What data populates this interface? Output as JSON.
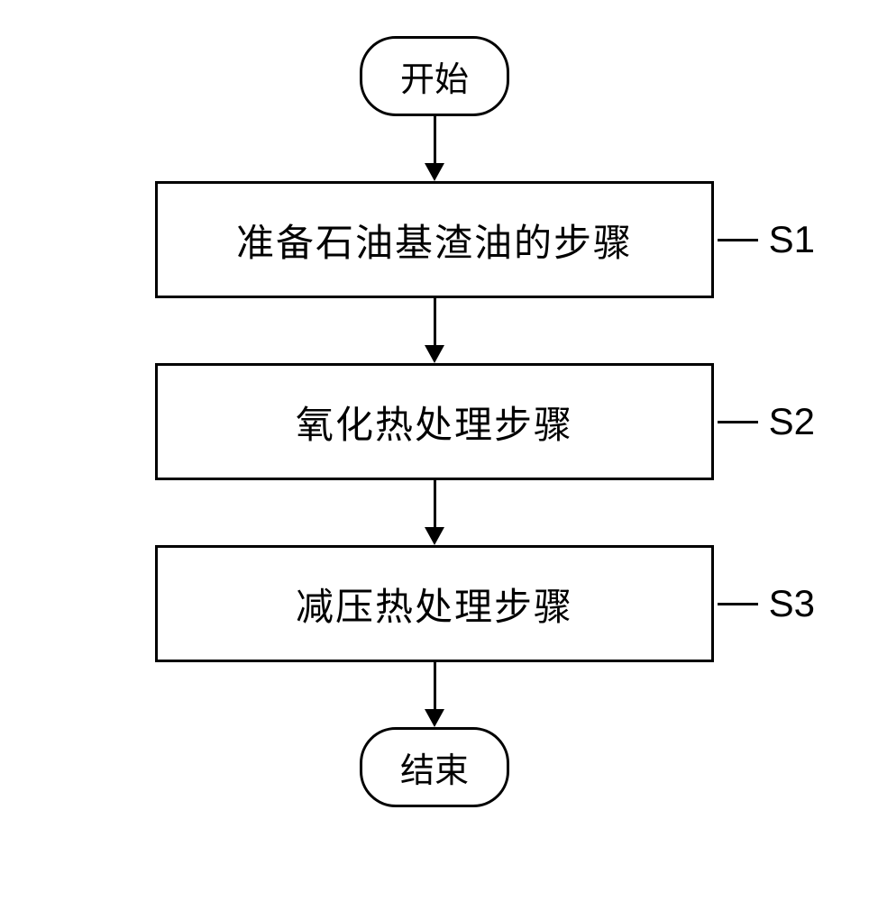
{
  "flowchart": {
    "type": "flowchart",
    "background_color": "#ffffff",
    "border_color": "#000000",
    "border_width": 3,
    "text_color": "#000000",
    "font_family": "SimSun",
    "terminal_fontsize": 38,
    "process_fontsize": 42,
    "label_fontsize": 42,
    "terminal_border_radius": 40,
    "process_width": 620,
    "process_height": 130,
    "arrow_length": 72,
    "arrow_head_width": 22,
    "arrow_head_height": 20,
    "connector_length": 45,
    "nodes": {
      "start": {
        "type": "terminal",
        "text": "开始"
      },
      "step1": {
        "type": "process",
        "text": "准备石油基渣油的步骤",
        "label": "S1"
      },
      "step2": {
        "type": "process",
        "text": "氧化热处理步骤",
        "label": "S2"
      },
      "step3": {
        "type": "process",
        "text": "减压热处理步骤",
        "label": "S3"
      },
      "end": {
        "type": "terminal",
        "text": "结束"
      }
    },
    "edges": [
      {
        "from": "start",
        "to": "step1"
      },
      {
        "from": "step1",
        "to": "step2"
      },
      {
        "from": "step2",
        "to": "step3"
      },
      {
        "from": "step3",
        "to": "end"
      }
    ]
  }
}
